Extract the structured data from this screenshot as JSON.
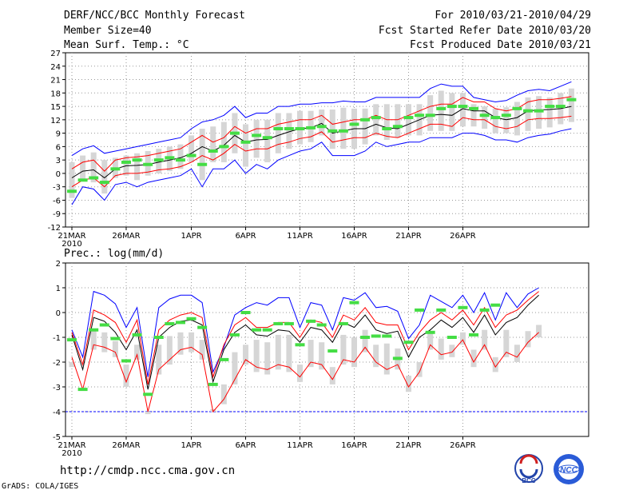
{
  "header": {
    "title": "DERF/NCC/BCC Monthly Forecast",
    "member_size": "Member Size=40",
    "variable": "Mean Surf. Temp.: °C",
    "period": "For 2010/03/21-2010/04/29",
    "start_date": "Fcst Started Refer Date 2010/03/20",
    "produced_date": "Fcst Produced Date 2010/03/21"
  },
  "url": "http://cmdp.ncc.cma.gov.cn",
  "credit": "GrADS: COLA/IGES",
  "logos": {
    "bcc": "BCC",
    "ncc": "NCC"
  },
  "chart_data": [
    {
      "type": "line",
      "title": "Mean Surf. Temp.: °C",
      "x_tick_labels": [
        "21MAR",
        "26MAR",
        "1APR",
        "6APR",
        "11APR",
        "16APR",
        "21APR",
        "26APR"
      ],
      "x_year_label": "2010",
      "ylim": [
        -12,
        27
      ],
      "y_ticks": [
        -12,
        -9,
        -6,
        -3,
        0,
        3,
        6,
        9,
        12,
        15,
        18,
        21,
        24,
        27
      ],
      "series": [
        {
          "name": "ensemble mean",
          "color": "#000000",
          "values": [
            -1,
            0.5,
            0.8,
            -1,
            1,
            1.7,
            1.8,
            2,
            2.5,
            3,
            3.5,
            4.5,
            6,
            5,
            6.3,
            8.5,
            7,
            7.5,
            7.6,
            8.5,
            9.3,
            10,
            10.2,
            11.2,
            9,
            9.5,
            10,
            10,
            11,
            10.2,
            10,
            11,
            12,
            13,
            13.2,
            13,
            14.5,
            14,
            14,
            12.5,
            12,
            12.5,
            14,
            14.2,
            14.3,
            14.5,
            15
          ]
        },
        {
          "name": "upper envelope (max)",
          "color": "#0000ff",
          "values": [
            4,
            5.5,
            6.2,
            4.5,
            5,
            5.5,
            6,
            6.5,
            7,
            7.5,
            8,
            10,
            11.5,
            12,
            13,
            15,
            12.5,
            13.5,
            13.5,
            15,
            15,
            15.5,
            15.5,
            15.8,
            15.8,
            16.2,
            16,
            16,
            17,
            17,
            17,
            17,
            17,
            19,
            20,
            19.5,
            19.5,
            17,
            16.5,
            16,
            16.3,
            17.5,
            18.5,
            18.8,
            18.5,
            19.5,
            20.5
          ]
        },
        {
          "name": "lower envelope (min)",
          "color": "#0000ff",
          "values": [
            -7,
            -3,
            -3.5,
            -6,
            -2.5,
            -2,
            -3,
            -2,
            -1.5,
            -1,
            -0.5,
            1,
            -3,
            1,
            1,
            3,
            0,
            2,
            1,
            3,
            4,
            5,
            5.5,
            7,
            4,
            4,
            4,
            5,
            7,
            6,
            6.5,
            7,
            7,
            8,
            8,
            8,
            9,
            9,
            8.5,
            7.5,
            7.5,
            7,
            8,
            8.5,
            8.8,
            9.5,
            10
          ]
        },
        {
          "name": "upper spread",
          "color": "#ff0000",
          "values": [
            1,
            2.5,
            3,
            0.5,
            3,
            3.5,
            3.7,
            4,
            4.5,
            5,
            5.5,
            7,
            8.5,
            7,
            8,
            10.5,
            9,
            10,
            10,
            11,
            11.5,
            12,
            12,
            13,
            11,
            11.5,
            12,
            12,
            13,
            12,
            12,
            13,
            14,
            15,
            15.5,
            15.5,
            17,
            16,
            16,
            14.5,
            14,
            14.5,
            16,
            16.5,
            16.5,
            16.8,
            17.2
          ]
        },
        {
          "name": "lower spread",
          "color": "#ff0000",
          "values": [
            -3,
            -1.5,
            -1,
            -3,
            -0.5,
            0,
            0,
            0.3,
            0.8,
            1,
            1.5,
            2.5,
            4,
            3,
            4.5,
            6.5,
            5,
            5.5,
            5.5,
            6.5,
            7,
            7.8,
            8.2,
            9.3,
            7,
            7.5,
            8,
            8,
            9,
            8.3,
            8,
            9,
            10,
            11,
            11,
            10.5,
            12.5,
            12,
            12,
            10.5,
            10,
            10.5,
            12,
            12.3,
            12.3,
            12.5,
            12.8
          ]
        },
        {
          "name": "observed / deterministic",
          "color": "#44dd44",
          "values": [
            -4,
            -1.5,
            -1,
            -2,
            1,
            2.5,
            3,
            2,
            3,
            3.5,
            3,
            4,
            2,
            5,
            6,
            9,
            7,
            8.5,
            8,
            10,
            10,
            10,
            10.2,
            10.5,
            9.5,
            9.5,
            11,
            12,
            12.5,
            10,
            10.5,
            12.5,
            13,
            13,
            14.5,
            15,
            15,
            14.5,
            13,
            12.5,
            13,
            14.5,
            14,
            14,
            15,
            15,
            16.5
          ]
        }
      ]
    },
    {
      "type": "line",
      "title": "Prec.: log(mm/d)",
      "x_tick_labels": [
        "21MAR",
        "26MAR",
        "1APR",
        "6APR",
        "11APR",
        "16APR",
        "21APR",
        "26APR"
      ],
      "x_year_label": "2010",
      "ylim": [
        -5,
        2
      ],
      "y_ticks": [
        -5,
        -4,
        -3,
        -2,
        -1,
        0,
        1,
        2
      ],
      "baseline": -4,
      "series": [
        {
          "name": "ensemble mean",
          "color": "#000000",
          "values": [
            -0.9,
            -2.3,
            -0.2,
            -0.35,
            -0.8,
            -1.5,
            -0.7,
            -3.1,
            -1.0,
            -0.6,
            -0.35,
            -0.3,
            -0.5,
            -2.8,
            -1.5,
            -0.8,
            -0.5,
            -0.9,
            -0.95,
            -0.7,
            -0.75,
            -1.2,
            -0.6,
            -0.7,
            -1.2,
            -0.4,
            -0.6,
            -0.1,
            -0.7,
            -0.85,
            -0.75,
            -1.8,
            -1.0,
            -0.7,
            -0.3,
            -0.6,
            -0.2,
            -0.8,
            -0.1,
            -0.9,
            -0.4,
            -0.2,
            0.3,
            0.7
          ]
        },
        {
          "name": "upper envelope (max)",
          "color": "#0000ff",
          "values": [
            -0.7,
            -1.8,
            0.85,
            0.7,
            0.35,
            -0.6,
            0.2,
            -2.6,
            0.2,
            0.55,
            0.7,
            0.7,
            0.4,
            -2.4,
            -1.4,
            -0.1,
            0.2,
            0.4,
            0.3,
            0.6,
            0.6,
            -0.6,
            0.4,
            0.3,
            -0.7,
            0.6,
            0.5,
            0.8,
            0.2,
            0.25,
            0.05,
            -1.05,
            -0.5,
            0.7,
            0.45,
            0.2,
            0.7,
            0,
            0.8,
            -0.3,
            0.8,
            0.2,
            0.75,
            1.0
          ]
        },
        {
          "name": "upper spread",
          "color": "#ff0000",
          "values": [
            -0.8,
            -2.1,
            0.1,
            -0.1,
            -0.4,
            -1.2,
            -0.3,
            -2.9,
            -0.7,
            -0.3,
            -0.1,
            0,
            -0.2,
            -2.6,
            -1.3,
            -0.5,
            -0.2,
            -0.6,
            -0.6,
            -0.4,
            -0.4,
            -1.0,
            -0.3,
            -0.4,
            -1.0,
            -0.1,
            -0.3,
            0.2,
            -0.4,
            -0.5,
            -0.5,
            -1.5,
            -0.8,
            -0.3,
            0,
            -0.3,
            0.1,
            -0.5,
            0.2,
            -0.6,
            -0.1,
            0.1,
            0.5,
            0.85
          ]
        },
        {
          "name": "lower spread",
          "color": "#ff0000",
          "values": [
            -1.8,
            -3.1,
            -1.3,
            -1.4,
            -1.6,
            -2.8,
            -1.7,
            -4.0,
            -2.3,
            -1.9,
            -1.5,
            -1.4,
            -1.7,
            -4.0,
            -3.5,
            -2.7,
            -1.9,
            -2.2,
            -2.3,
            -2.1,
            -2.2,
            -2.6,
            -2.0,
            -2.1,
            -2.7,
            -1.9,
            -2.0,
            -1.4,
            -2.0,
            -2.3,
            -2.1,
            -3.0,
            -2.4,
            -1.3,
            -1.7,
            -1.6,
            -1.1,
            -2.0,
            -1.3,
            -2.2,
            -1.6,
            -1.8,
            -1.2,
            -0.8
          ]
        },
        {
          "name": "observed / deterministic",
          "color": "#44dd44",
          "values": [
            -1.1,
            -3.1,
            -0.7,
            -0.5,
            -1.05,
            -1.95,
            -0.9,
            -3.3,
            -1.0,
            -0.45,
            -0.4,
            -0.25,
            -0.6,
            -2.9,
            -1.9,
            -0.9,
            0,
            -0.7,
            -0.7,
            -0.45,
            -0.45,
            -1.3,
            -0.35,
            -0.5,
            -1.55,
            -0.45,
            0.4,
            -1.0,
            -0.95,
            -0.95,
            -1.85,
            -1.2,
            0.1,
            -0.8,
            0.1,
            -1.0,
            0.2,
            -0.9,
            0.1,
            0.3
          ]
        }
      ]
    }
  ]
}
